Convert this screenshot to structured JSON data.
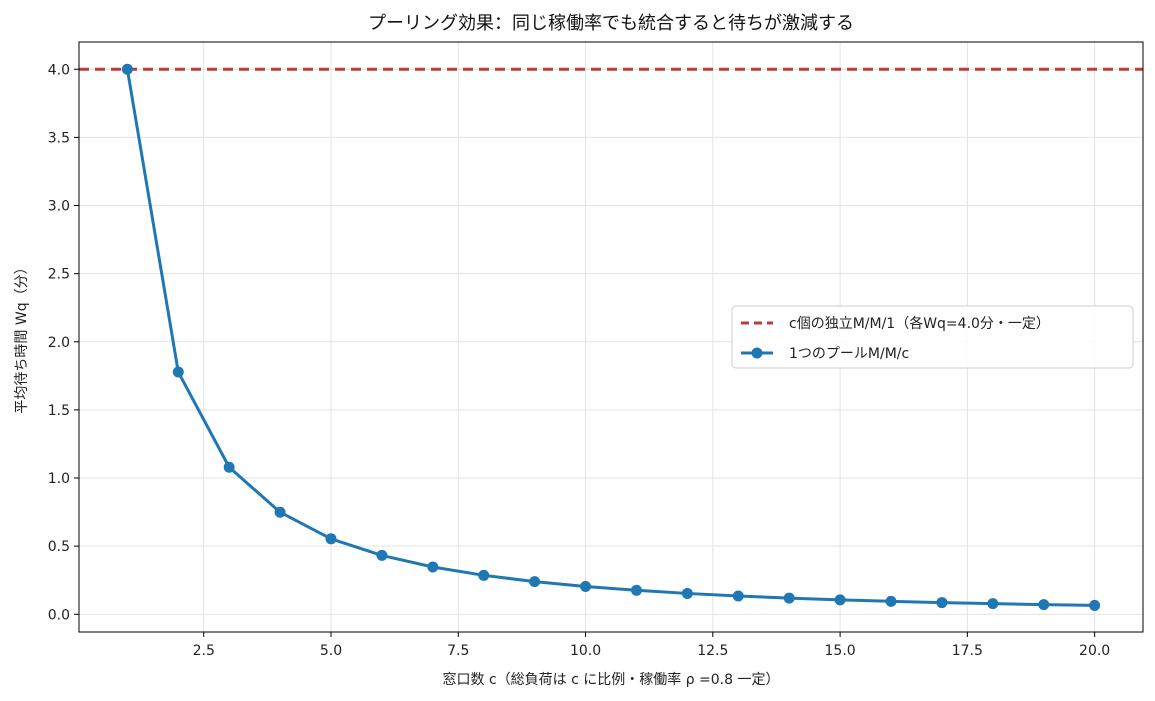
{
  "chart_data": {
    "type": "line",
    "title": "プーリング効果：同じ稼働率でも統合すると待ちが激減する",
    "xlabel": "窓口数 c（総負荷は c に比例・稼働率 ρ =0.8 一定）",
    "ylabel": "平均待ち時間 Wq（分）",
    "xlim": [
      0.05,
      20.95
    ],
    "ylim": [
      -0.13,
      4.2
    ],
    "xticks": [
      2.5,
      5.0,
      7.5,
      10.0,
      12.5,
      15.0,
      17.5,
      20.0
    ],
    "xtick_labels": [
      "2.5",
      "5.0",
      "7.5",
      "10.0",
      "12.5",
      "15.0",
      "17.5",
      "20.0"
    ],
    "yticks": [
      0.0,
      0.5,
      1.0,
      1.5,
      2.0,
      2.5,
      3.0,
      3.5,
      4.0
    ],
    "ytick_labels": [
      "0.0",
      "0.5",
      "1.0",
      "1.5",
      "2.0",
      "2.5",
      "3.0",
      "3.5",
      "4.0"
    ],
    "grid": true,
    "legend_position": "center-right",
    "series": [
      {
        "name": "c個の独立M/M/1（各Wq=4.0分・一定）",
        "style": "dashed",
        "color": "#c0393b",
        "y_constant": 4.0
      },
      {
        "name": "1つのプールM/M/c",
        "style": "solid-marker",
        "color": "#1f77b4",
        "x": [
          1,
          2,
          3,
          4,
          5,
          6,
          7,
          8,
          9,
          10,
          11,
          12,
          13,
          14,
          15,
          16,
          17,
          18,
          19,
          20
        ],
        "y": [
          4.0,
          1.778,
          1.079,
          0.749,
          0.554,
          0.432,
          0.347,
          0.286,
          0.24,
          0.204,
          0.176,
          0.153,
          0.134,
          0.119,
          0.106,
          0.095,
          0.086,
          0.078,
          0.071,
          0.065
        ]
      }
    ]
  }
}
